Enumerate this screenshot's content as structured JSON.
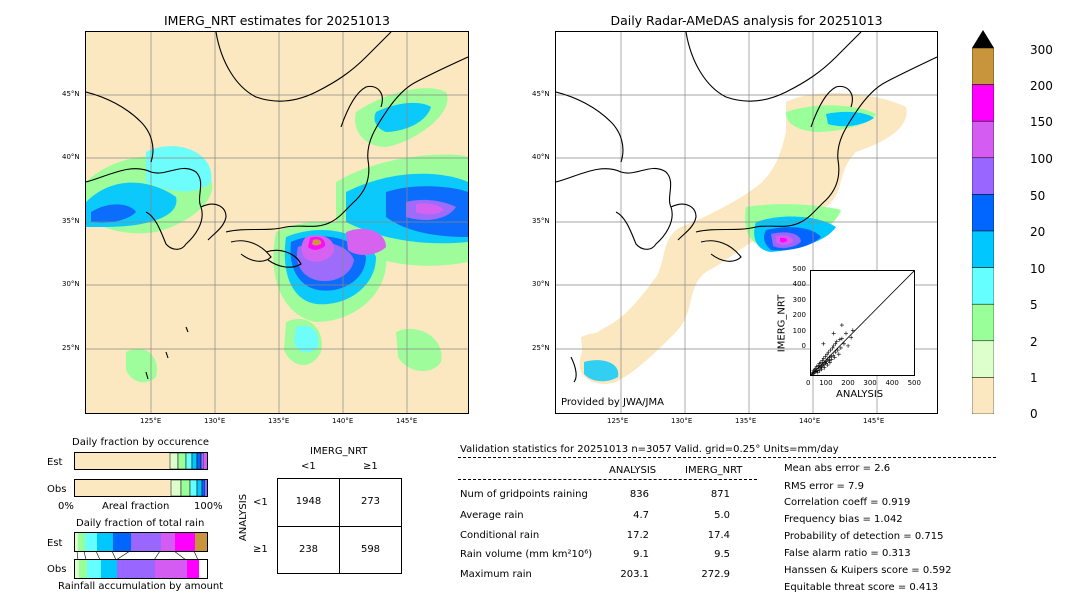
{
  "left_map": {
    "title": "IMERG_NRT estimates for 20251013",
    "lat_labels": [
      "45°N",
      "40°N",
      "35°N",
      "30°N",
      "25°N"
    ],
    "lon_labels": [
      "125°E",
      "130°E",
      "135°E",
      "140°E",
      "145°E"
    ]
  },
  "right_map": {
    "title": "Daily Radar-AMeDAS analysis for 20251013",
    "lat_labels": [
      "45°N",
      "40°N",
      "35°N",
      "30°N",
      "25°N"
    ],
    "lon_labels": [
      "125°E",
      "130°E",
      "135°E",
      "140°E",
      "145°E"
    ],
    "provided_by": "Provided by JWA/JMA"
  },
  "colorbar": {
    "ticks": [
      "300",
      "200",
      "150",
      "100",
      "50",
      "20",
      "10",
      "5",
      "2",
      "1",
      "0"
    ],
    "colors": [
      "#c8953c",
      "#ff00ff",
      "#d45cf2",
      "#9966ff",
      "#0066ff",
      "#00c8ff",
      "#66ffff",
      "#99ff99",
      "#ddffcc",
      "#fce8c0"
    ],
    "arrow_color": "#000000"
  },
  "occurrence": {
    "title": "Daily fraction by occurence",
    "est_label": "Est",
    "obs_label": "Obs",
    "axis_left": "0%",
    "axis_mid": "Areal fraction",
    "axis_right": "100%"
  },
  "amount": {
    "title": "Daily fraction of total rain",
    "est_label": "Est",
    "obs_label": "Obs",
    "axis_caption": "Rainfall accumulation by amount"
  },
  "contingency": {
    "col_header": "IMERG_NRT",
    "col_lt": "<1",
    "col_ge": "≥1",
    "row_header": "ANALYSIS",
    "row_lt": "<1",
    "row_ge": "≥1",
    "v11": "1948",
    "v12": "273",
    "v21": "238",
    "v22": "598"
  },
  "validation": {
    "header": "Validation statistics for 20251013  n=3057 Valid. grid=0.25° Units=mm/day",
    "col_analysis": "ANALYSIS",
    "col_imerg": "IMERG_NRT",
    "rows": [
      {
        "label": "Num of gridpoints raining",
        "analysis": "836",
        "imerg": "871"
      },
      {
        "label": "Average rain",
        "analysis": "4.7",
        "imerg": "5.0"
      },
      {
        "label": "Conditional rain",
        "analysis": "17.2",
        "imerg": "17.4"
      },
      {
        "label": "Rain volume (mm km²10⁶)",
        "analysis": "9.1",
        "imerg": "9.5"
      },
      {
        "label": "Maximum rain",
        "analysis": "203.1",
        "imerg": "272.9"
      }
    ],
    "scores": [
      "Mean abs error =    2.6",
      "RMS error =    7.9",
      "Correlation coeff =  0.919",
      "Frequency bias =  1.042",
      "Probability of detection =  0.715",
      "False alarm ratio =  0.313",
      "Hanssen & Kuipers score =  0.592",
      "Equitable threat score =  0.413"
    ]
  },
  "chart_data": {
    "type": "scatter",
    "xlabel": "ANALYSIS",
    "ylabel": "IMERG_NRT",
    "xlim": [
      0,
      500
    ],
    "ylim": [
      0,
      500
    ],
    "ticks": [
      "0",
      "100",
      "200",
      "300",
      "400",
      "500"
    ],
    "points": [
      [
        5,
        3
      ],
      [
        8,
        12
      ],
      [
        10,
        6
      ],
      [
        12,
        20
      ],
      [
        15,
        10
      ],
      [
        18,
        25
      ],
      [
        20,
        15
      ],
      [
        22,
        30
      ],
      [
        25,
        18
      ],
      [
        28,
        40
      ],
      [
        30,
        22
      ],
      [
        33,
        12
      ],
      [
        35,
        45
      ],
      [
        38,
        30
      ],
      [
        40,
        55
      ],
      [
        42,
        20
      ],
      [
        45,
        35
      ],
      [
        48,
        60
      ],
      [
        50,
        40
      ],
      [
        52,
        28
      ],
      [
        55,
        70
      ],
      [
        58,
        45
      ],
      [
        60,
        50
      ],
      [
        62,
        80
      ],
      [
        65,
        35
      ],
      [
        68,
        60
      ],
      [
        70,
        90
      ],
      [
        72,
        55
      ],
      [
        75,
        65
      ],
      [
        78,
        100
      ],
      [
        80,
        48
      ],
      [
        82,
        75
      ],
      [
        85,
        110
      ],
      [
        88,
        70
      ],
      [
        90,
        85
      ],
      [
        92,
        60
      ],
      [
        95,
        120
      ],
      [
        98,
        90
      ],
      [
        100,
        75
      ],
      [
        105,
        130
      ],
      [
        108,
        95
      ],
      [
        110,
        140
      ],
      [
        115,
        85
      ],
      [
        118,
        150
      ],
      [
        120,
        110
      ],
      [
        125,
        160
      ],
      [
        130,
        120
      ],
      [
        135,
        100
      ],
      [
        140,
        170
      ],
      [
        145,
        130
      ],
      [
        150,
        175
      ],
      [
        160,
        150
      ],
      [
        170,
        200
      ],
      [
        180,
        140
      ],
      [
        195,
        180
      ],
      [
        203,
        215
      ],
      [
        60,
        150
      ],
      [
        110,
        200
      ],
      [
        150,
        240
      ]
    ]
  }
}
